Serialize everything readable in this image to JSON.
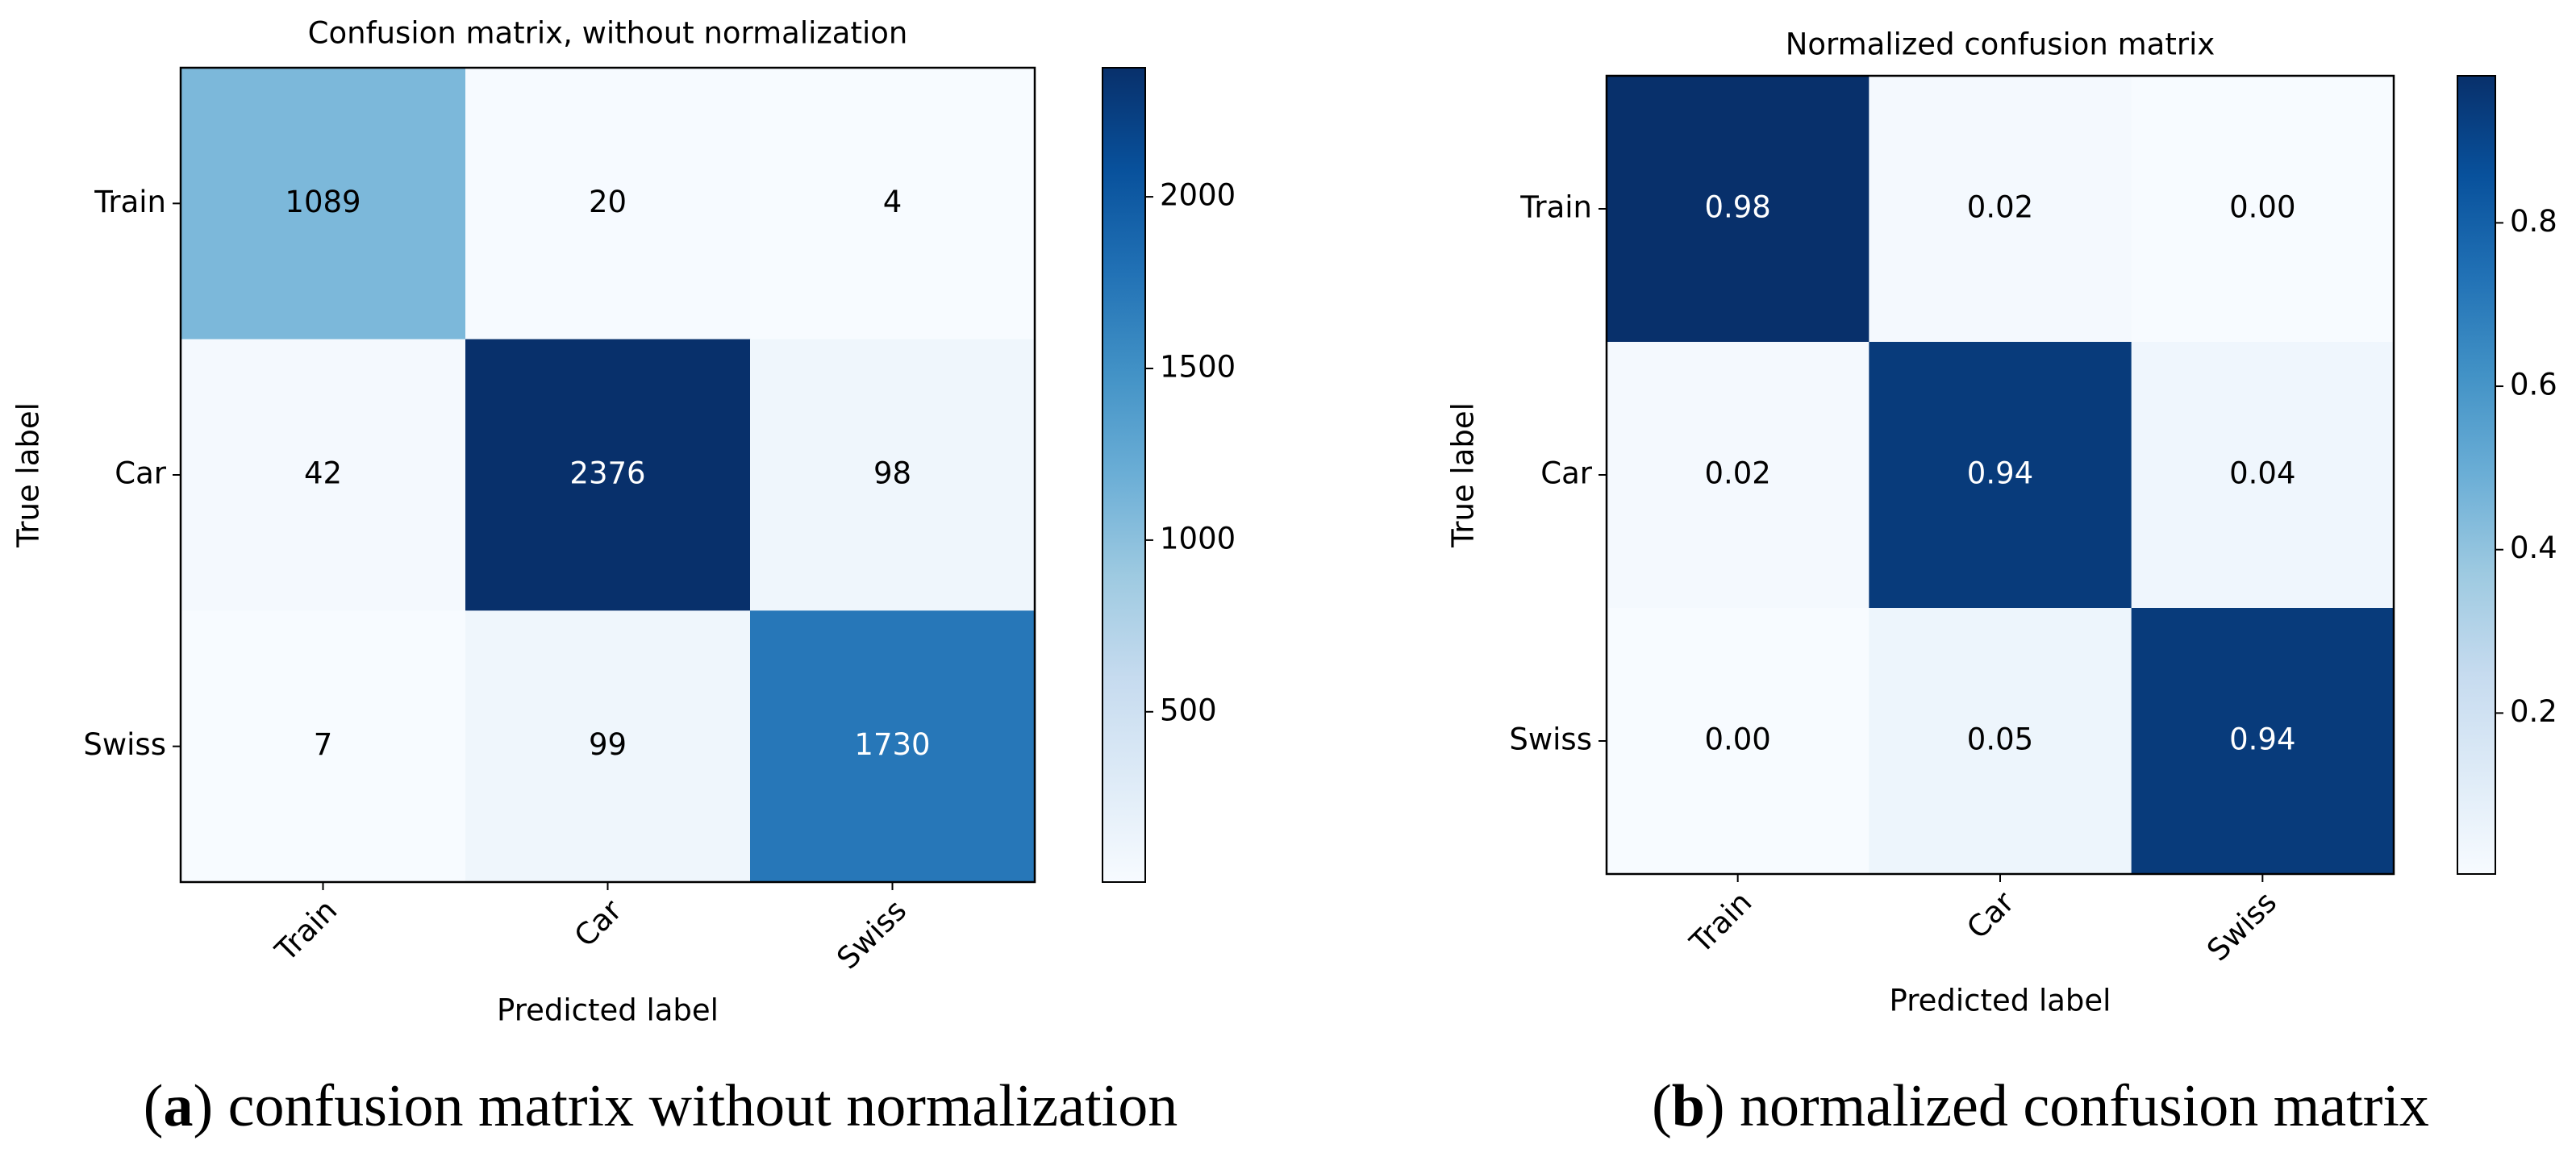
{
  "chart_data": [
    {
      "type": "heatmap",
      "title": "Confusion matrix, without normalization",
      "xlabel": "Predicted label",
      "ylabel": "True label",
      "x_categories": [
        "Train",
        "Car",
        "Swiss"
      ],
      "y_categories": [
        "Train",
        "Car",
        "Swiss"
      ],
      "values": [
        [
          1089,
          20,
          4
        ],
        [
          42,
          2376,
          98
        ],
        [
          7,
          99,
          1730
        ]
      ],
      "colormap": "Blues",
      "clim": [
        4,
        2376
      ],
      "cticks": [
        500,
        1000,
        1500,
        2000
      ],
      "caption": [
        "(",
        "a",
        ") confusion matrix without normalization"
      ]
    },
    {
      "type": "heatmap",
      "title": "Normalized confusion matrix",
      "xlabel": "Predicted label",
      "ylabel": "True label",
      "x_categories": [
        "Train",
        "Car",
        "Swiss"
      ],
      "y_categories": [
        "Train",
        "Car",
        "Swiss"
      ],
      "values": [
        [
          0.98,
          0.02,
          0.0
        ],
        [
          0.02,
          0.94,
          0.04
        ],
        [
          0.0,
          0.05,
          0.94
        ]
      ],
      "value_labels": [
        [
          "0.98",
          "0.02",
          "0.00"
        ],
        [
          "0.02",
          "0.94",
          "0.04"
        ],
        [
          "0.00",
          "0.05",
          "0.94"
        ]
      ],
      "colormap": "Blues",
      "clim": [
        0.003,
        0.98
      ],
      "cticks": [
        0.2,
        0.4,
        0.6,
        0.8
      ],
      "caption": [
        "(",
        "b",
        ") normalized confusion matrix"
      ]
    }
  ]
}
